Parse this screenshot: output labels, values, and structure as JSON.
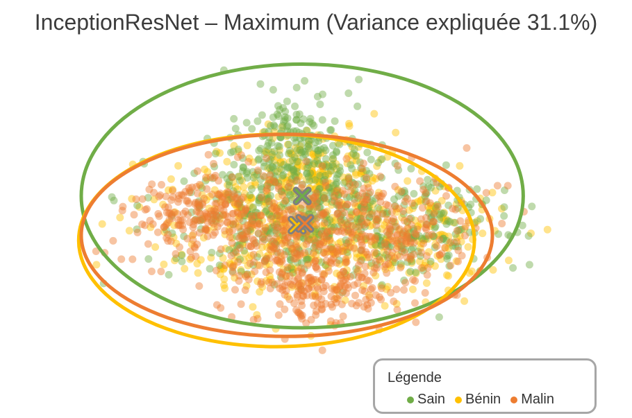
{
  "chart_data": {
    "type": "scatter",
    "title": "InceptionResNet – Maximum (Variance expliquée 31.1%)",
    "xlabel": "",
    "ylabel": "",
    "xlim": [
      -5,
      5
    ],
    "ylim": [
      -4,
      4.5
    ],
    "grid": false,
    "axes_visible": false,
    "legend": {
      "title": "Légende",
      "placement": "bottom-right",
      "entries": [
        "Sain",
        "Bénin",
        "Malin"
      ]
    },
    "series": [
      {
        "name": "Sain",
        "color": "#70ad47",
        "centroid": [
          -0.2,
          0.6
        ],
        "ellipse": {
          "center": [
            -0.2,
            0.6
          ],
          "rx": 4.3,
          "ry": 3.85
        },
        "cloud": {
          "core": [
            -0.3,
            0.3
          ],
          "spread": [
            1.25,
            1.05
          ],
          "upper": [
            -0.4,
            2.0
          ],
          "upper_spread": [
            0.55,
            0.75
          ],
          "right": [
            2.3,
            -0.3
          ],
          "right_spread": [
            0.9,
            0.7
          ]
        },
        "outliers": [
          [
            0.9,
            4.0
          ],
          [
            0.7,
            3.6
          ],
          [
            0.1,
            3.5
          ],
          [
            3.2,
            0.8
          ],
          [
            3.9,
            -1.5
          ],
          [
            2.6,
            1.5
          ]
        ]
      },
      {
        "name": "Bénin",
        "color": "#ffc000",
        "centroid": [
          -0.3,
          -0.25
        ],
        "ellipse": {
          "center": [
            -0.7,
            -0.7
          ],
          "rx": 3.85,
          "ry": 3.1
        },
        "cloud": {
          "core": [
            -0.3,
            -0.4
          ],
          "spread": [
            1.3,
            1.05
          ],
          "upper": [
            -0.2,
            1.3
          ],
          "upper_spread": [
            0.7,
            0.6
          ],
          "right": [
            2.0,
            -0.6
          ],
          "right_spread": [
            1.0,
            0.8
          ]
        },
        "outliers": [
          [
            1.2,
            3.0
          ],
          [
            3.5,
            0.7
          ],
          [
            3.3,
            0.2
          ],
          [
            3.1,
            -1.6
          ],
          [
            2.8,
            -1.3
          ],
          [
            2.2,
            -2.5
          ]
        ]
      },
      {
        "name": "Malin",
        "color": "#ed7d31",
        "centroid": [
          -0.15,
          -0.2
        ],
        "ellipse": {
          "center": [
            -0.5,
            -0.55
          ],
          "rx": 4.0,
          "ry": 2.95
        },
        "cloud": {
          "core": [
            -0.2,
            -0.5
          ],
          "spread": [
            1.3,
            1.0
          ],
          "left": [
            -2.2,
            0.1
          ],
          "left_spread": [
            0.6,
            0.45
          ],
          "bottom": [
            0.2,
            -2.1
          ],
          "bottom_spread": [
            0.7,
            0.5
          ],
          "right": [
            1.8,
            -0.4
          ],
          "right_spread": [
            0.9,
            0.7
          ]
        },
        "outliers": [
          [
            3.0,
            2.0
          ],
          [
            3.6,
            0.9
          ],
          [
            3.8,
            0.9
          ],
          [
            3.4,
            -1.2
          ],
          [
            1.3,
            -3.3
          ],
          [
            2.9,
            0.4
          ]
        ]
      }
    ]
  }
}
